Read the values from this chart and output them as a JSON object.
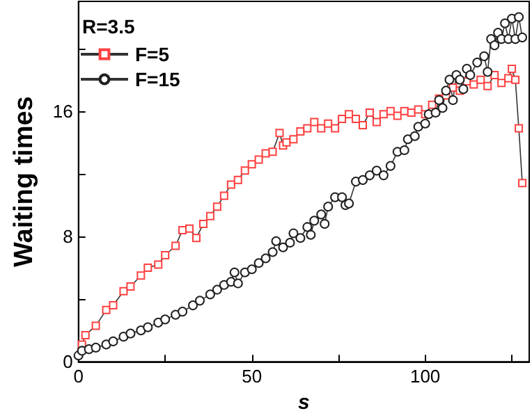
{
  "chart_data": {
    "type": "line",
    "xlabel": "s",
    "ylabel": "Waiting times",
    "legend_title": "R=3.5",
    "legend": "top left",
    "grid": false,
    "xlim": [
      0,
      130
    ],
    "xticks": [
      0,
      {
        "value": 25,
        "label": null
      },
      50,
      {
        "value": 75,
        "label": null
      },
      100,
      {
        "value": 125,
        "label": null
      }
    ],
    "ylim": [
      0,
      23
    ],
    "yticks": [
      0,
      {
        "value": 4,
        "label": null
      },
      8,
      {
        "value": 12,
        "label": null
      },
      16,
      {
        "value": 20,
        "label": null
      }
    ],
    "series": [
      {
        "name": "F=5",
        "color": "#ff4040",
        "marker": "square",
        "x": [
          1,
          2,
          5,
          8,
          10,
          13,
          15,
          18,
          20,
          23,
          25,
          28,
          30,
          32,
          34,
          36,
          38,
          40,
          42,
          44,
          46,
          48,
          50,
          52,
          54,
          56,
          58,
          59,
          60,
          62,
          64,
          66,
          68,
          70,
          72,
          74,
          76,
          78,
          80,
          82,
          84,
          86,
          88,
          90,
          92,
          94,
          96,
          98,
          100,
          102,
          104,
          106,
          108,
          110,
          112,
          114,
          116,
          118,
          120,
          122,
          124,
          125,
          126,
          127,
          128
        ],
        "values": [
          1.1,
          1.7,
          2.3,
          3.3,
          3.6,
          4.5,
          4.8,
          5.5,
          6.0,
          6.2,
          6.8,
          7.4,
          8.4,
          8.5,
          7.9,
          8.8,
          9.3,
          9.9,
          10.6,
          11.3,
          11.6,
          12.2,
          12.6,
          12.9,
          13.3,
          13.4,
          14.6,
          13.8,
          14.0,
          14.2,
          14.7,
          14.9,
          15.3,
          14.9,
          15.2,
          14.9,
          15.5,
          15.8,
          15.5,
          15.1,
          15.9,
          15.3,
          15.8,
          16.0,
          15.7,
          16.0,
          15.9,
          16.1,
          15.8,
          16.4,
          16.8,
          17.0,
          17.5,
          17.3,
          17.9,
          17.7,
          18.0,
          17.6,
          18.3,
          17.8,
          18.1,
          18.7,
          18.0,
          14.9,
          11.4
        ]
      },
      {
        "name": "F=15",
        "color": "#202020",
        "marker": "circle",
        "x": [
          0,
          1,
          3,
          5,
          8,
          10,
          13,
          15,
          18,
          20,
          23,
          25,
          28,
          30,
          33,
          35,
          38,
          40,
          42,
          44,
          45,
          46,
          48,
          50,
          52,
          54,
          56,
          57,
          59,
          61,
          62,
          64,
          66,
          67,
          68,
          70,
          71,
          72,
          74,
          76,
          77,
          78,
          80,
          82,
          84,
          86,
          88,
          90,
          92,
          94,
          95,
          97,
          98,
          100,
          101,
          103,
          104,
          105,
          106,
          107,
          108,
          109,
          110,
          111,
          112,
          113,
          115,
          117,
          118,
          119,
          120,
          121,
          122,
          123,
          124,
          125,
          126,
          127,
          128
        ],
        "values": [
          0.4,
          0.7,
          0.8,
          0.9,
          1.1,
          1.3,
          1.6,
          1.8,
          2.0,
          2.2,
          2.5,
          2.7,
          3.0,
          3.2,
          3.6,
          3.9,
          4.3,
          4.6,
          4.9,
          5.1,
          5.7,
          5.0,
          5.7,
          5.9,
          6.3,
          6.6,
          7.0,
          7.7,
          7.3,
          7.6,
          8.2,
          7.9,
          8.6,
          8.1,
          9.0,
          9.4,
          8.8,
          9.9,
          10.5,
          10.5,
          10.0,
          10.1,
          11.5,
          11.6,
          11.9,
          12.2,
          11.9,
          12.5,
          13.4,
          13.5,
          14.2,
          14.4,
          15.0,
          15.2,
          15.8,
          15.9,
          16.7,
          16.2,
          17.3,
          18.0,
          16.7,
          18.3,
          18.0,
          17.4,
          18.7,
          18.3,
          19.1,
          19.5,
          18.5,
          20.6,
          20.2,
          21.0,
          20.6,
          21.6,
          20.6,
          21.9,
          20.6,
          22.0,
          20.7
        ]
      }
    ]
  }
}
